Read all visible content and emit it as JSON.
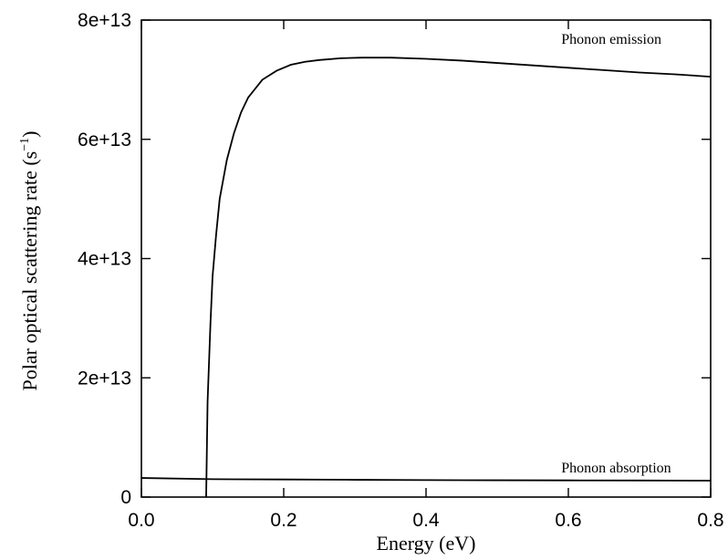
{
  "chart_data": {
    "type": "line",
    "title": "",
    "xlabel": "Energy (eV)",
    "ylabel_main": "Polar optical scattering rate (s",
    "ylabel_sup": "−1",
    "ylabel_close": ")",
    "xlim": [
      0,
      0.8
    ],
    "ylim": [
      0,
      80000000000000.0
    ],
    "grid": false,
    "xticks": [
      {
        "value": 0.0,
        "label": "0.0"
      },
      {
        "value": 0.2,
        "label": "0.2"
      },
      {
        "value": 0.4,
        "label": "0.4"
      },
      {
        "value": 0.6,
        "label": "0.6"
      },
      {
        "value": 0.8,
        "label": "0.8"
      }
    ],
    "yticks": [
      {
        "value": 0,
        "label": "0"
      },
      {
        "value": 20000000000000.0,
        "label": "2e+13"
      },
      {
        "value": 40000000000000.0,
        "label": "4e+13"
      },
      {
        "value": 60000000000000.0,
        "label": "6e+13"
      },
      {
        "value": 80000000000000.0,
        "label": "8e+13"
      }
    ],
    "series": [
      {
        "name": "Phonon emission",
        "x": [
          0.091,
          0.093,
          0.097,
          0.1,
          0.105,
          0.11,
          0.12,
          0.13,
          0.14,
          0.15,
          0.17,
          0.19,
          0.21,
          0.23,
          0.25,
          0.28,
          0.31,
          0.35,
          0.4,
          0.45,
          0.5,
          0.55,
          0.6,
          0.65,
          0.7,
          0.75,
          0.8
        ],
        "y": [
          0,
          16000000000000.0,
          29000000000000.0,
          37000000000000.0,
          44000000000000.0,
          50000000000000.0,
          56500000000000.0,
          61000000000000.0,
          64500000000000.0,
          67000000000000.0,
          70000000000000.0,
          71500000000000.0,
          72500000000000.0,
          73000000000000.0,
          73300000000000.0,
          73600000000000.0,
          73700000000000.0,
          73700000000000.0,
          73500000000000.0,
          73200000000000.0,
          72800000000000.0,
          72400000000000.0,
          72000000000000.0,
          71600000000000.0,
          71200000000000.0,
          70900000000000.0,
          70500000000000.0
        ]
      },
      {
        "name": "Phonon absorption",
        "x": [
          0.0,
          0.1,
          0.2,
          0.3,
          0.4,
          0.5,
          0.6,
          0.7,
          0.8
        ],
        "y": [
          3200000000000.0,
          3000000000000.0,
          2950000000000.0,
          2900000000000.0,
          2850000000000.0,
          2820000000000.0,
          2800000000000.0,
          2780000000000.0,
          2750000000000.0
        ]
      }
    ],
    "annotations": [
      {
        "text": "Phonon emission",
        "x": 0.59,
        "y": 76000000000000.0
      },
      {
        "text": "Phonon absorption",
        "x": 0.59,
        "y": 4100000000000.0
      }
    ]
  }
}
